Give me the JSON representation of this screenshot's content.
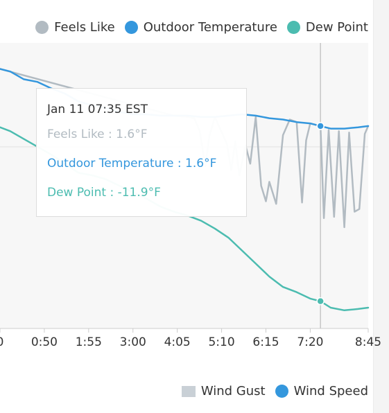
{
  "colors": {
    "feels_like": "#b2bbc2",
    "outdoor_temperature": "#3497dd",
    "dew_point": "#4cbcb0",
    "wind_gust": "#c9d0d6",
    "wind_speed": "#3497dd",
    "text": "#333333",
    "crosshair": "#c6c6c6",
    "band": "#f7f7f7"
  },
  "legend_top": [
    {
      "label": "Feels Like",
      "color": "#b2bbc2"
    },
    {
      "label": "Outdoor Temperature",
      "color": "#3497dd"
    },
    {
      "label": "Dew Point",
      "color": "#4cbcb0"
    }
  ],
  "legend_bottom": [
    {
      "label": "Wind Gust",
      "color": "#c9d0d6",
      "shape": "square"
    },
    {
      "label": "Wind Speed",
      "color": "#3497dd",
      "shape": "circle"
    }
  ],
  "tooltip": {
    "time": "Jan 11 07:35 EST",
    "feels_like": "Feels Like : 1.6°F",
    "outdoor_temperature": "Outdoor Temperature : 1.6°F",
    "dew_point": "Dew Point : -11.9°F"
  },
  "chart_data": {
    "type": "line",
    "x_tick_labels": [
      "0",
      "0:50",
      "1:55",
      "3:00",
      "4:05",
      "5:10",
      "6:15",
      "7:20",
      "8:45"
    ],
    "x_ticks_minutes": [
      -15,
      50,
      115,
      180,
      245,
      310,
      375,
      440,
      525
    ],
    "x_range_minutes": [
      -15,
      525
    ],
    "y_range": [
      -14,
      8
    ],
    "highlight_minutes": 455,
    "series": [
      {
        "name": "Outdoor Temperature",
        "x": [
          -15,
          0,
          20,
          40,
          60,
          80,
          100,
          120,
          140,
          160,
          180,
          200,
          220,
          240,
          260,
          280,
          300,
          320,
          340,
          360,
          380,
          400,
          420,
          440,
          455,
          470,
          490,
          510,
          525
        ],
        "y": [
          6.0,
          5.8,
          5.2,
          5.0,
          4.5,
          4.1,
          3.5,
          3.2,
          3.0,
          2.7,
          2.5,
          2.5,
          2.4,
          2.4,
          2.4,
          2.3,
          2.3,
          2.4,
          2.5,
          2.4,
          2.2,
          2.1,
          1.9,
          1.8,
          1.6,
          1.4,
          1.4,
          1.5,
          1.6
        ]
      },
      {
        "name": "Feels Like",
        "x": [
          -15,
          240,
          260,
          270,
          278,
          286,
          292,
          300,
          318,
          324,
          330,
          336,
          345,
          352,
          360,
          368,
          375,
          380,
          390,
          400,
          410,
          420,
          428,
          434,
          440,
          455,
          460,
          467,
          475,
          482,
          490,
          497,
          505,
          512,
          520,
          525
        ],
        "y": [
          6.0,
          2.4,
          2.3,
          2.2,
          1.2,
          -1.5,
          0.8,
          2.3,
          0.2,
          -1.8,
          0.4,
          -2.2,
          0.1,
          -1.3,
          2.3,
          -3.0,
          -4.2,
          -2.7,
          -4.4,
          0.9,
          2.1,
          1.9,
          -4.3,
          0.5,
          1.8,
          1.6,
          -5.5,
          1.3,
          -5.4,
          1.2,
          -6.2,
          1.1,
          -5.0,
          -4.8,
          1.0,
          1.6
        ]
      },
      {
        "name": "Dew Point",
        "x": [
          -15,
          0,
          20,
          40,
          60,
          80,
          100,
          120,
          140,
          160,
          180,
          200,
          220,
          240,
          260,
          280,
          300,
          320,
          340,
          360,
          380,
          400,
          420,
          440,
          455,
          470,
          490,
          510,
          525
        ],
        "y": [
          1.5,
          1.2,
          0.6,
          0.0,
          -0.6,
          -1.3,
          -2.0,
          -2.2,
          -2.5,
          -3.0,
          -3.5,
          -4.0,
          -4.6,
          -5.0,
          -5.3,
          -5.7,
          -6.3,
          -7.0,
          -8.0,
          -9.0,
          -10.0,
          -10.8,
          -11.2,
          -11.7,
          -11.9,
          -12.4,
          -12.6,
          -12.5,
          -12.4
        ]
      }
    ]
  }
}
